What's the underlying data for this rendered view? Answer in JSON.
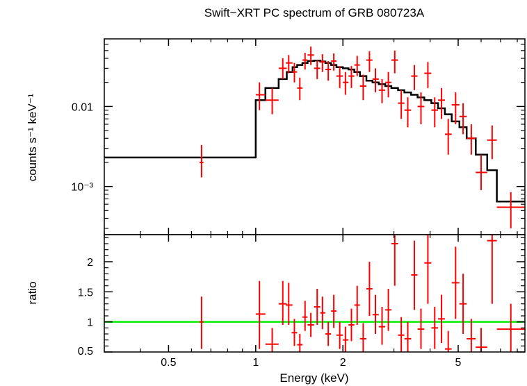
{
  "chart_data": [
    {
      "type": "scatter",
      "title": "Swift−XRT PC spectrum of GRB 080723A",
      "xlabel": "",
      "ylabel": "counts s⁻¹ keV⁻¹",
      "xscale": "log",
      "yscale": "log",
      "xlim": [
        0.3,
        8.5
      ],
      "ylim": [
        0.00025,
        0.07
      ],
      "yticks": [
        {
          "value": 0.01,
          "label": "0.01"
        },
        {
          "value": 0.001,
          "label": "10⁻³"
        }
      ],
      "series": [
        {
          "name": "data",
          "color": "#ff0000",
          "points": [
            {
              "x": 0.65,
              "xlo": 0.64,
              "xhi": 0.66,
              "y": 0.002,
              "ylo": 0.0013,
              "yhi": 0.0033
            },
            {
              "x": 1.03,
              "xlo": 1.0,
              "xhi": 1.08,
              "y": 0.014,
              "ylo": 0.009,
              "yhi": 0.02
            },
            {
              "x": 1.14,
              "xlo": 1.08,
              "xhi": 1.2,
              "y": 0.012,
              "ylo": 0.008,
              "yhi": 0.017
            },
            {
              "x": 1.24,
              "xlo": 1.2,
              "xhi": 1.28,
              "y": 0.03,
              "ylo": 0.022,
              "yhi": 0.04
            },
            {
              "x": 1.3,
              "xlo": 1.27,
              "xhi": 1.34,
              "y": 0.035,
              "ylo": 0.026,
              "yhi": 0.044
            },
            {
              "x": 1.36,
              "xlo": 1.33,
              "xhi": 1.39,
              "y": 0.027,
              "ylo": 0.02,
              "yhi": 0.035
            },
            {
              "x": 1.42,
              "xlo": 1.39,
              "xhi": 1.45,
              "y": 0.017,
              "ylo": 0.012,
              "yhi": 0.023
            },
            {
              "x": 1.48,
              "xlo": 1.45,
              "xhi": 1.51,
              "y": 0.038,
              "ylo": 0.029,
              "yhi": 0.047
            },
            {
              "x": 1.55,
              "xlo": 1.51,
              "xhi": 1.59,
              "y": 0.044,
              "ylo": 0.033,
              "yhi": 0.056
            },
            {
              "x": 1.63,
              "xlo": 1.59,
              "xhi": 1.67,
              "y": 0.03,
              "ylo": 0.022,
              "yhi": 0.038
            },
            {
              "x": 1.7,
              "xlo": 1.67,
              "xhi": 1.74,
              "y": 0.036,
              "ylo": 0.027,
              "yhi": 0.045
            },
            {
              "x": 1.78,
              "xlo": 1.74,
              "xhi": 1.82,
              "y": 0.029,
              "ylo": 0.021,
              "yhi": 0.037
            },
            {
              "x": 1.86,
              "xlo": 1.82,
              "xhi": 1.9,
              "y": 0.037,
              "ylo": 0.028,
              "yhi": 0.046
            },
            {
              "x": 1.95,
              "xlo": 1.9,
              "xhi": 2.0,
              "y": 0.024,
              "ylo": 0.017,
              "yhi": 0.032
            },
            {
              "x": 2.04,
              "xlo": 2.0,
              "xhi": 2.09,
              "y": 0.02,
              "ylo": 0.014,
              "yhi": 0.027
            },
            {
              "x": 2.14,
              "xlo": 2.09,
              "xhi": 2.19,
              "y": 0.024,
              "ylo": 0.017,
              "yhi": 0.032
            },
            {
              "x": 2.24,
              "xlo": 2.19,
              "xhi": 2.29,
              "y": 0.033,
              "ylo": 0.024,
              "yhi": 0.043
            },
            {
              "x": 2.35,
              "xlo": 2.29,
              "xhi": 2.41,
              "y": 0.018,
              "ylo": 0.012,
              "yhi": 0.025
            },
            {
              "x": 2.47,
              "xlo": 2.41,
              "xhi": 2.53,
              "y": 0.038,
              "ylo": 0.027,
              "yhi": 0.049
            },
            {
              "x": 2.59,
              "xlo": 2.53,
              "xhi": 2.66,
              "y": 0.022,
              "ylo": 0.015,
              "yhi": 0.03
            },
            {
              "x": 2.73,
              "xlo": 2.66,
              "xhi": 2.8,
              "y": 0.016,
              "ylo": 0.011,
              "yhi": 0.022
            },
            {
              "x": 2.87,
              "xlo": 2.8,
              "xhi": 2.94,
              "y": 0.02,
              "ylo": 0.013,
              "yhi": 0.027
            },
            {
              "x": 3.02,
              "xlo": 2.94,
              "xhi": 3.1,
              "y": 0.038,
              "ylo": 0.026,
              "yhi": 0.05
            },
            {
              "x": 3.18,
              "xlo": 3.1,
              "xhi": 3.26,
              "y": 0.011,
              "ylo": 0.007,
              "yhi": 0.016
            },
            {
              "x": 3.35,
              "xlo": 3.26,
              "xhi": 3.44,
              "y": 0.009,
              "ylo": 0.0055,
              "yhi": 0.013
            },
            {
              "x": 3.53,
              "xlo": 3.44,
              "xhi": 3.62,
              "y": 0.024,
              "ylo": 0.016,
              "yhi": 0.033
            },
            {
              "x": 3.72,
              "xlo": 3.62,
              "xhi": 3.82,
              "y": 0.01,
              "ylo": 0.006,
              "yhi": 0.015
            },
            {
              "x": 3.93,
              "xlo": 3.82,
              "xhi": 4.04,
              "y": 0.026,
              "ylo": 0.017,
              "yhi": 0.036
            },
            {
              "x": 4.15,
              "xlo": 4.04,
              "xhi": 4.26,
              "y": 0.009,
              "ylo": 0.0055,
              "yhi": 0.013
            },
            {
              "x": 4.38,
              "xlo": 4.26,
              "xhi": 4.5,
              "y": 0.012,
              "ylo": 0.007,
              "yhi": 0.017
            },
            {
              "x": 4.62,
              "xlo": 4.5,
              "xhi": 4.75,
              "y": 0.0045,
              "ylo": 0.0025,
              "yhi": 0.007
            },
            {
              "x": 4.9,
              "xlo": 4.75,
              "xhi": 5.05,
              "y": 0.0105,
              "ylo": 0.006,
              "yhi": 0.015
            },
            {
              "x": 5.2,
              "xlo": 5.05,
              "xhi": 5.35,
              "y": 0.0075,
              "ylo": 0.0045,
              "yhi": 0.011
            },
            {
              "x": 5.55,
              "xlo": 5.35,
              "xhi": 5.75,
              "y": 0.004,
              "ylo": 0.0025,
              "yhi": 0.006
            },
            {
              "x": 6.0,
              "xlo": 5.75,
              "xhi": 6.3,
              "y": 0.0015,
              "ylo": 0.0009,
              "yhi": 0.0025
            },
            {
              "x": 6.55,
              "xlo": 6.3,
              "xhi": 6.8,
              "y": 0.0038,
              "ylo": 0.0022,
              "yhi": 0.0058
            },
            {
              "x": 7.6,
              "xlo": 6.8,
              "xhi": 8.5,
              "y": 0.00055,
              "ylo": 0.0003,
              "yhi": 0.00085
            }
          ]
        },
        {
          "name": "model",
          "color": "#000000",
          "step_edges": [
            0.3,
            1.0,
            1.08,
            1.2,
            1.28,
            1.34,
            1.39,
            1.45,
            1.51,
            1.59,
            1.67,
            1.74,
            1.82,
            1.9,
            2.0,
            2.09,
            2.19,
            2.29,
            2.41,
            2.53,
            2.66,
            2.8,
            2.94,
            3.1,
            3.26,
            3.44,
            3.62,
            3.82,
            4.04,
            4.26,
            4.5,
            4.75,
            5.05,
            5.35,
            5.75,
            6.3,
            6.8,
            8.5
          ],
          "step_values": [
            0.0023,
            0.012,
            0.017,
            0.022,
            0.027,
            0.031,
            0.033,
            0.035,
            0.037,
            0.0375,
            0.0365,
            0.035,
            0.033,
            0.031,
            0.03,
            0.029,
            0.027,
            0.024,
            0.021,
            0.02,
            0.019,
            0.018,
            0.017,
            0.016,
            0.015,
            0.014,
            0.013,
            0.012,
            0.011,
            0.0095,
            0.008,
            0.0065,
            0.0055,
            0.004,
            0.0025,
            0.0016,
            0.00065
          ]
        }
      ]
    },
    {
      "type": "scatter",
      "title": "",
      "xlabel": "Energy (keV)",
      "ylabel": "ratio",
      "xscale": "log",
      "yscale": "linear",
      "xlim": [
        0.3,
        8.5
      ],
      "ylim": [
        0.5,
        2.45
      ],
      "xticks": [
        {
          "value": 0.5,
          "label": "0.5"
        },
        {
          "value": 1,
          "label": "1"
        },
        {
          "value": 2,
          "label": "2"
        },
        {
          "value": 5,
          "label": "5"
        }
      ],
      "yticks": [
        {
          "value": 0.5,
          "label": "0.5"
        },
        {
          "value": 1,
          "label": "1"
        },
        {
          "value": 1.5,
          "label": "1.5"
        },
        {
          "value": 2,
          "label": "2"
        }
      ],
      "reference_line": {
        "y": 1.0,
        "color": "#00ee00"
      },
      "series": [
        {
          "name": "ratio",
          "color": "#ff0000",
          "points": [
            {
              "x": 0.65,
              "xlo": 0.64,
              "xhi": 0.66,
              "y": 1.0,
              "ylo": 0.55,
              "yhi": 1.42
            },
            {
              "x": 1.03,
              "xlo": 1.0,
              "xhi": 1.08,
              "y": 1.13,
              "ylo": 0.55,
              "yhi": 1.68
            },
            {
              "x": 1.14,
              "xlo": 1.08,
              "xhi": 1.2,
              "y": 0.63,
              "ylo": 0.4,
              "yhi": 0.9
            },
            {
              "x": 1.24,
              "xlo": 1.2,
              "xhi": 1.28,
              "y": 1.3,
              "ylo": 0.95,
              "yhi": 1.68
            },
            {
              "x": 1.3,
              "xlo": 1.27,
              "xhi": 1.34,
              "y": 1.28,
              "ylo": 0.95,
              "yhi": 1.65
            },
            {
              "x": 1.36,
              "xlo": 1.33,
              "xhi": 1.39,
              "y": 0.82,
              "ylo": 0.6,
              "yhi": 1.05
            },
            {
              "x": 1.42,
              "xlo": 1.39,
              "xhi": 1.45,
              "y": 0.62,
              "ylo": 0.45,
              "yhi": 0.8
            },
            {
              "x": 1.48,
              "xlo": 1.45,
              "xhi": 1.51,
              "y": 1.08,
              "ylo": 0.85,
              "yhi": 1.35
            },
            {
              "x": 1.55,
              "xlo": 1.51,
              "xhi": 1.59,
              "y": 0.95,
              "ylo": 0.75,
              "yhi": 1.15
            },
            {
              "x": 1.63,
              "xlo": 1.59,
              "xhi": 1.67,
              "y": 1.25,
              "ylo": 0.95,
              "yhi": 1.55
            },
            {
              "x": 1.7,
              "xlo": 1.67,
              "xhi": 1.74,
              "y": 1.15,
              "ylo": 0.88,
              "yhi": 1.42
            },
            {
              "x": 1.78,
              "xlo": 1.74,
              "xhi": 1.82,
              "y": 0.8,
              "ylo": 0.6,
              "yhi": 1.0
            },
            {
              "x": 1.86,
              "xlo": 1.82,
              "xhi": 1.9,
              "y": 1.18,
              "ylo": 0.9,
              "yhi": 1.45
            },
            {
              "x": 1.95,
              "xlo": 1.9,
              "xhi": 2.0,
              "y": 0.78,
              "ylo": 0.55,
              "yhi": 1.0
            },
            {
              "x": 2.04,
              "xlo": 2.0,
              "xhi": 2.09,
              "y": 0.7,
              "ylo": 0.48,
              "yhi": 0.92
            },
            {
              "x": 2.14,
              "xlo": 2.09,
              "xhi": 2.19,
              "y": 0.95,
              "ylo": 0.68,
              "yhi": 1.22
            },
            {
              "x": 2.24,
              "xlo": 2.19,
              "xhi": 2.29,
              "y": 1.28,
              "ylo": 0.95,
              "yhi": 1.6
            },
            {
              "x": 2.35,
              "xlo": 2.29,
              "xhi": 2.41,
              "y": 0.72,
              "ylo": 0.48,
              "yhi": 0.98
            },
            {
              "x": 2.47,
              "xlo": 2.41,
              "xhi": 2.53,
              "y": 1.55,
              "ylo": 1.1,
              "yhi": 2.0
            },
            {
              "x": 2.59,
              "xlo": 2.53,
              "xhi": 2.66,
              "y": 1.12,
              "ylo": 0.8,
              "yhi": 1.45
            },
            {
              "x": 2.73,
              "xlo": 2.66,
              "xhi": 2.8,
              "y": 0.92,
              "ylo": 0.62,
              "yhi": 1.25
            },
            {
              "x": 2.87,
              "xlo": 2.8,
              "xhi": 2.94,
              "y": 1.2,
              "ylo": 0.85,
              "yhi": 1.55
            },
            {
              "x": 3.02,
              "xlo": 2.94,
              "xhi": 3.1,
              "y": 2.3,
              "ylo": 1.6,
              "yhi": 2.45
            },
            {
              "x": 3.18,
              "xlo": 3.1,
              "xhi": 3.26,
              "y": 0.78,
              "ylo": 0.5,
              "yhi": 1.08
            },
            {
              "x": 3.35,
              "xlo": 3.26,
              "xhi": 3.44,
              "y": 0.72,
              "ylo": 0.45,
              "yhi": 1.0
            },
            {
              "x": 3.53,
              "xlo": 3.44,
              "xhi": 3.62,
              "y": 1.78,
              "ylo": 1.2,
              "yhi": 2.35
            },
            {
              "x": 3.72,
              "xlo": 3.62,
              "xhi": 3.82,
              "y": 0.88,
              "ylo": 0.55,
              "yhi": 1.22
            },
            {
              "x": 3.93,
              "xlo": 3.82,
              "xhi": 4.04,
              "y": 1.98,
              "ylo": 1.3,
              "yhi": 2.45
            },
            {
              "x": 4.15,
              "xlo": 4.04,
              "xhi": 4.26,
              "y": 0.9,
              "ylo": 0.55,
              "yhi": 1.25
            },
            {
              "x": 4.38,
              "xlo": 4.26,
              "xhi": 4.5,
              "y": 1.05,
              "ylo": 0.65,
              "yhi": 1.45
            },
            {
              "x": 4.62,
              "xlo": 4.5,
              "xhi": 4.75,
              "y": 0.55,
              "ylo": 0.4,
              "yhi": 0.85
            },
            {
              "x": 4.9,
              "xlo": 4.75,
              "xhi": 5.05,
              "y": 1.65,
              "ylo": 1.05,
              "yhi": 2.25
            },
            {
              "x": 5.2,
              "xlo": 5.05,
              "xhi": 5.35,
              "y": 1.3,
              "ylo": 0.8,
              "yhi": 1.8
            },
            {
              "x": 5.55,
              "xlo": 5.35,
              "xhi": 5.75,
              "y": 0.72,
              "ylo": 0.45,
              "yhi": 1.05
            },
            {
              "x": 6.0,
              "xlo": 5.75,
              "xhi": 6.3,
              "y": 0.58,
              "ylo": 0.4,
              "yhi": 0.9
            },
            {
              "x": 6.55,
              "xlo": 6.3,
              "xhi": 6.8,
              "y": 2.35,
              "ylo": 1.3,
              "yhi": 2.45
            },
            {
              "x": 7.6,
              "xlo": 6.8,
              "xhi": 8.5,
              "y": 0.88,
              "ylo": 0.45,
              "yhi": 1.3
            }
          ]
        }
      ]
    }
  ],
  "title": "Swift−XRT PC spectrum of GRB 080723A",
  "top_ylabel": "counts s⁻¹ keV⁻¹",
  "bottom_ylabel": "ratio",
  "xlabel": "Energy (keV)"
}
